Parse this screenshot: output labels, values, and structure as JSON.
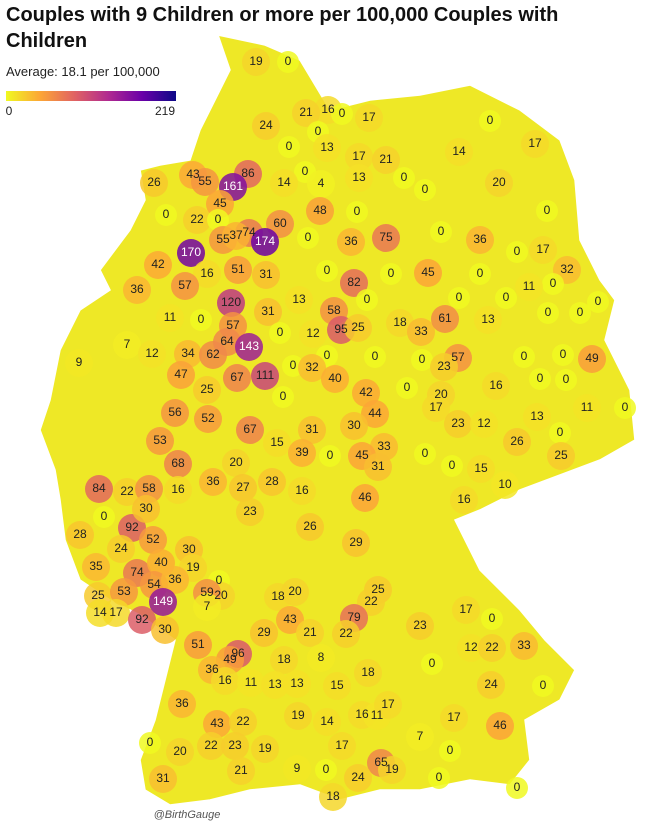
{
  "header": {
    "title": "Couples with 9 Children or more per 100,000 Couples with Children",
    "subtitle": "Average: 18.1 per 100,000"
  },
  "chart_data": {
    "type": "choropleth",
    "scale": {
      "min": 0,
      "max": 219,
      "colors": [
        "#f0f921",
        "#fca636",
        "#e16462",
        "#b12a90",
        "#6a00a8",
        "#0d0887"
      ]
    },
    "base_color": "#eee826",
    "values": [
      19,
      0,
      16,
      21,
      0,
      17,
      24,
      0,
      13,
      0,
      17,
      21,
      14,
      17,
      0,
      86,
      0,
      13,
      0,
      20,
      26,
      43,
      55,
      161,
      14,
      4,
      0,
      45,
      48,
      0,
      0,
      0,
      22,
      0,
      60,
      74,
      170,
      55,
      37,
      174,
      0,
      36,
      75,
      0,
      36,
      0,
      17,
      42,
      51,
      31,
      0,
      82,
      0,
      45,
      0,
      32,
      16,
      36,
      57,
      0,
      11,
      120,
      13,
      58,
      0,
      0,
      0,
      0,
      11,
      0,
      31,
      57,
      95,
      25,
      18,
      33,
      61,
      13,
      0,
      0,
      12,
      7,
      12,
      34,
      62,
      64,
      143,
      0,
      0,
      0,
      0,
      0,
      57,
      23,
      0,
      0,
      49,
      9,
      47,
      111,
      32,
      40,
      25,
      67,
      42,
      0,
      16,
      0,
      0,
      56,
      52,
      0,
      20,
      44,
      17,
      23,
      12,
      13,
      11,
      0,
      53,
      67,
      31,
      30,
      15,
      39,
      0,
      33,
      45,
      26,
      0,
      84,
      68,
      20,
      36,
      27,
      28,
      16,
      31,
      0,
      0,
      15,
      25,
      10,
      22,
      58,
      16,
      46,
      16,
      92,
      52,
      28,
      24,
      30,
      23,
      26,
      29,
      0,
      35,
      74,
      40,
      30,
      19,
      54,
      36,
      0,
      20,
      18,
      20,
      25,
      22,
      23,
      17,
      0,
      25,
      53,
      14,
      17,
      149,
      92,
      30,
      59,
      7,
      29,
      43,
      21,
      79,
      22,
      51,
      96,
      49,
      18,
      8,
      12,
      22,
      33,
      24,
      36,
      36,
      16,
      11,
      13,
      13,
      15,
      0,
      0,
      18,
      43,
      22,
      19,
      14,
      16,
      11,
      17,
      17,
      46,
      0,
      20,
      22,
      23,
      19,
      17,
      7,
      0,
      21,
      9,
      0,
      65,
      24,
      19,
      0,
      0,
      31,
      18
    ]
  },
  "footer": {
    "credit": "@BirthGauge"
  }
}
